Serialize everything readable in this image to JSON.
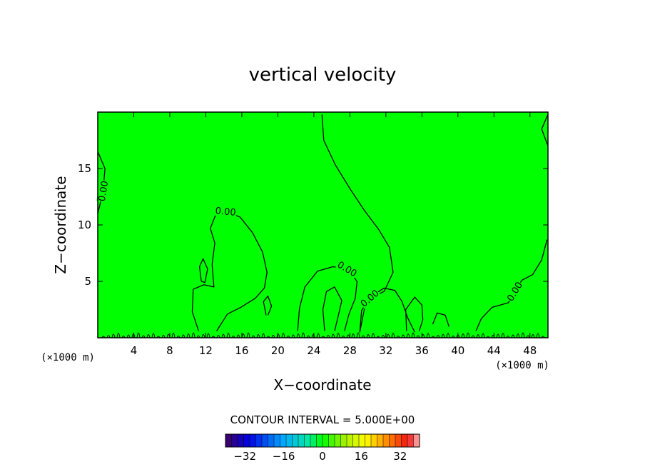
{
  "chart_data": {
    "type": "heatmap",
    "title": "vertical velocity",
    "xlabel": "X−coordinate",
    "ylabel": "Z−coordinate",
    "x_unit": "(×1000 m)",
    "y_unit": "(×1000 m)",
    "xlim": [
      0,
      50
    ],
    "ylim": [
      0,
      20
    ],
    "x_ticks": [
      4,
      8,
      12,
      16,
      20,
      24,
      28,
      32,
      36,
      40,
      44,
      48
    ],
    "x_tick_labels": [
      "4",
      "8",
      "12",
      "16",
      "20",
      "24",
      "28",
      "32",
      "36",
      "40",
      "44",
      "48"
    ],
    "y_ticks": [
      5,
      10,
      15
    ],
    "y_tick_labels": [
      "5",
      "10",
      "15"
    ],
    "field_value": 0,
    "contour_lines": [
      {
        "label": "0.00",
        "points": [
          [
            0,
            16.5
          ],
          [
            0.8,
            15
          ],
          [
            0.6,
            13
          ],
          [
            0,
            11
          ]
        ]
      },
      {
        "label": "",
        "points": [
          [
            50,
            19.8
          ],
          [
            49.3,
            18.5
          ],
          [
            50,
            17
          ]
        ]
      },
      {
        "label": "0.00",
        "points": [
          [
            24.9,
            19.8
          ],
          [
            25.1,
            17.5
          ],
          [
            26.4,
            15.3
          ],
          [
            28.1,
            13.1
          ],
          [
            29.6,
            11.3
          ],
          [
            31.2,
            9.6
          ],
          [
            32.4,
            8.0
          ],
          [
            32.8,
            5.8
          ],
          [
            31.8,
            4.1
          ],
          [
            30.2,
            3.5
          ],
          [
            29.3,
            2.4
          ],
          [
            29.1,
            0.5
          ],
          [
            29.6,
            2.5
          ],
          [
            30.6,
            3.8
          ],
          [
            31.8,
            4.4
          ],
          [
            33.0,
            4.2
          ],
          [
            33.8,
            3.2
          ],
          [
            34.4,
            1.8
          ],
          [
            35.2,
            0.5
          ]
        ]
      },
      {
        "label": "0.00",
        "points": [
          [
            11.2,
            0.6
          ],
          [
            10.5,
            2.3
          ],
          [
            10.6,
            4.3
          ],
          [
            11.8,
            4.7
          ],
          [
            12.9,
            4.5
          ],
          [
            12.7,
            6.5
          ],
          [
            13.0,
            8.4
          ],
          [
            12.5,
            9.7
          ],
          [
            13.1,
            10.9
          ],
          [
            14.2,
            11.2
          ],
          [
            15.8,
            10.7
          ],
          [
            17.2,
            9.3
          ],
          [
            18.3,
            7.6
          ],
          [
            18.8,
            5.8
          ],
          [
            18.5,
            4.4
          ],
          [
            17.5,
            3.5
          ],
          [
            15.9,
            2.7
          ],
          [
            14.4,
            2.1
          ],
          [
            13.2,
            0.6
          ]
        ]
      },
      {
        "label": "",
        "points": [
          [
            11.5,
            5.0
          ],
          [
            11.3,
            6.3
          ],
          [
            11.7,
            7.0
          ],
          [
            12.2,
            6.1
          ],
          [
            11.9,
            4.9
          ],
          [
            11.5,
            5.0
          ]
        ]
      },
      {
        "label": "0.00",
        "points": [
          [
            22.2,
            0.6
          ],
          [
            22.4,
            2.6
          ],
          [
            23.0,
            4.5
          ],
          [
            24.4,
            5.9
          ],
          [
            26.1,
            6.3
          ],
          [
            27.7,
            6.1
          ],
          [
            28.8,
            5.0
          ],
          [
            28.6,
            3.5
          ],
          [
            27.9,
            2.1
          ],
          [
            27.4,
            0.6
          ]
        ]
      },
      {
        "label": "",
        "points": [
          [
            25.2,
            0.6
          ],
          [
            25.0,
            2.5
          ],
          [
            25.4,
            4.1
          ],
          [
            26.3,
            4.5
          ],
          [
            27.1,
            3.3
          ],
          [
            26.7,
            1.9
          ],
          [
            26.3,
            0.6
          ]
        ]
      },
      {
        "label": "",
        "points": [
          [
            18.7,
            2.0
          ],
          [
            18.4,
            3.2
          ],
          [
            18.9,
            3.7
          ],
          [
            19.3,
            2.8
          ],
          [
            18.9,
            2.0
          ]
        ]
      },
      {
        "label": "0.00",
        "points": [
          [
            42.0,
            0.6
          ],
          [
            42.6,
            1.7
          ],
          [
            43.8,
            2.7
          ],
          [
            45.6,
            3.1
          ],
          [
            46.3,
            4.1
          ],
          [
            47.1,
            5.1
          ],
          [
            48.3,
            5.6
          ],
          [
            49.3,
            6.9
          ],
          [
            49.9,
            8.7
          ]
        ]
      },
      {
        "label": "",
        "points": [
          [
            34.3,
            0.6
          ],
          [
            34.2,
            2.5
          ],
          [
            35.2,
            3.6
          ],
          [
            36.0,
            2.9
          ],
          [
            36.1,
            1.6
          ],
          [
            35.7,
            0.6
          ]
        ]
      },
      {
        "label": "",
        "points": [
          [
            37.2,
            1.2
          ],
          [
            37.7,
            2.2
          ],
          [
            38.6,
            2.0
          ],
          [
            39.0,
            1.0
          ]
        ]
      }
    ],
    "contour_interval_label": "CONTOUR INTERVAL = 5.000E+00",
    "colorbar": {
      "min": -40,
      "max": 40,
      "step": 2.5,
      "tick_values": [
        -32,
        -16,
        0,
        16,
        32
      ],
      "tick_labels": [
        "−32",
        "−16",
        "0",
        "16",
        "32"
      ]
    }
  }
}
